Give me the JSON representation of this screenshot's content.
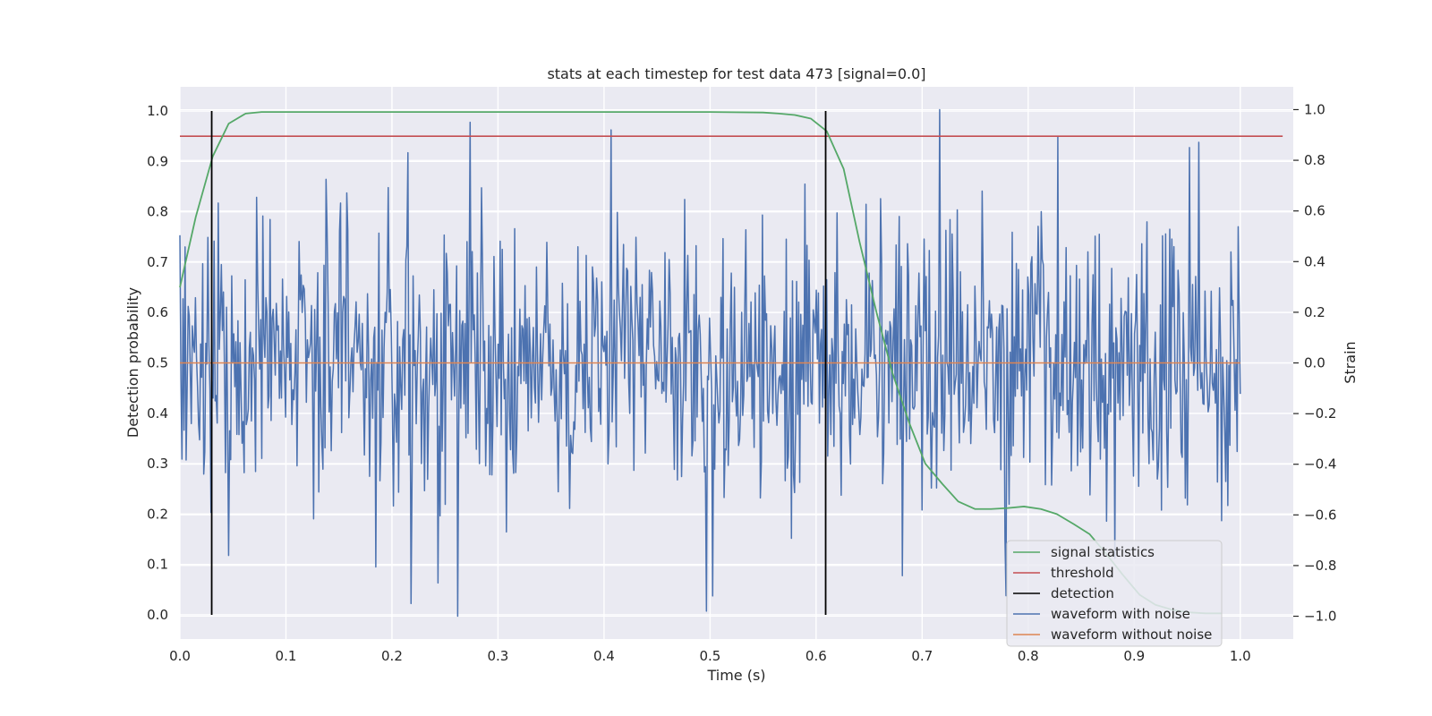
{
  "chart_data": {
    "type": "line",
    "title": "stats at each timestep for test data 473 [signal=0.0]",
    "xlabel": "Time (s)",
    "ylabel": "Detection probability",
    "ylabel_right": "Strain",
    "xlim": [
      0.0,
      1.05
    ],
    "ylim": [
      -0.048,
      1.048
    ],
    "ylim_right": [
      -1.09,
      1.09
    ],
    "xticks": [
      0.0,
      0.1,
      0.2,
      0.3,
      0.4,
      0.5,
      0.6,
      0.7,
      0.8,
      0.9,
      1.0
    ],
    "xtick_labels": [
      "0.0",
      "0.1",
      "0.2",
      "0.3",
      "0.4",
      "0.5",
      "0.6",
      "0.7",
      "0.8",
      "0.9",
      "1.0"
    ],
    "yticks": [
      0.0,
      0.1,
      0.2,
      0.3,
      0.4,
      0.5,
      0.6,
      0.7,
      0.8,
      0.9,
      1.0
    ],
    "ytick_labels": [
      "0.0",
      "0.1",
      "0.2",
      "0.3",
      "0.4",
      "0.5",
      "0.6",
      "0.7",
      "0.8",
      "0.9",
      "1.0"
    ],
    "yticks_right": [
      -1.0,
      -0.8,
      -0.6,
      -0.4,
      -0.2,
      0.0,
      0.2,
      0.4,
      0.6,
      0.8,
      1.0
    ],
    "ytick_labels_right": [
      "−1.0",
      "−0.8",
      "−0.6",
      "−0.4",
      "−0.2",
      "0.0",
      "0.2",
      "0.4",
      "0.6",
      "0.8",
      "1.0"
    ],
    "grid": true,
    "legend_position": "lower-right",
    "series": [
      {
        "name": "signal statistics",
        "axis": "left",
        "color": "#55a868",
        "x": [
          0.0,
          0.015,
          0.031,
          0.046,
          0.062,
          0.077,
          0.093,
          0.108,
          0.2,
          0.3,
          0.4,
          0.5,
          0.55,
          0.565,
          0.58,
          0.595,
          0.61,
          0.626,
          0.641,
          0.657,
          0.672,
          0.688,
          0.703,
          0.719,
          0.734,
          0.75,
          0.765,
          0.781,
          0.796,
          0.812,
          0.827,
          0.843,
          0.858,
          0.874,
          0.889,
          0.905,
          0.92,
          0.936,
          0.951,
          0.967,
          0.982
        ],
        "y": [
          0.65,
          0.79,
          0.91,
          0.975,
          0.995,
          0.998,
          0.998,
          0.998,
          0.998,
          0.998,
          0.998,
          0.998,
          0.997,
          0.995,
          0.992,
          0.985,
          0.96,
          0.885,
          0.74,
          0.6,
          0.48,
          0.38,
          0.3,
          0.26,
          0.225,
          0.21,
          0.21,
          0.212,
          0.215,
          0.21,
          0.2,
          0.18,
          0.16,
          0.12,
          0.08,
          0.04,
          0.02,
          0.01,
          0.005,
          0.003,
          0.003
        ]
      },
      {
        "name": "threshold",
        "axis": "left",
        "color": "#c44e52",
        "x": [
          0.0,
          1.04
        ],
        "y": [
          0.95,
          0.95
        ]
      },
      {
        "name": "detection",
        "axis": "left",
        "color": "#000000",
        "events": [
          {
            "x": 0.03,
            "y": [
              0.0,
              1.0
            ]
          },
          {
            "x": 0.609,
            "y": [
              0.0,
              1.0
            ]
          }
        ]
      },
      {
        "name": "waveform with noise",
        "axis": "right",
        "color": "#4c72b0",
        "x_range": [
          0.0,
          1.0
        ],
        "n_points": 1024,
        "amplitude_std": 0.27,
        "peaks": [
          {
            "x": 0.274,
            "y": 0.95
          },
          {
            "x": 0.407,
            "y": 0.92
          },
          {
            "x": 0.717,
            "y": 1.0
          },
          {
            "x": 0.952,
            "y": 0.85
          },
          {
            "x": 0.215,
            "y": 0.83
          },
          {
            "x": 0.262,
            "y": -1.0
          },
          {
            "x": 0.497,
            "y": -0.98
          },
          {
            "x": 0.218,
            "y": -0.95
          },
          {
            "x": 0.502,
            "y": -0.92
          },
          {
            "x": 0.046,
            "y": -0.76
          },
          {
            "x": 0.681,
            "y": -0.84
          }
        ]
      },
      {
        "name": "waveform without noise",
        "axis": "right",
        "color": "#dd8452",
        "x": [
          0.0,
          1.0
        ],
        "y": [
          0.0,
          0.0
        ]
      }
    ]
  }
}
